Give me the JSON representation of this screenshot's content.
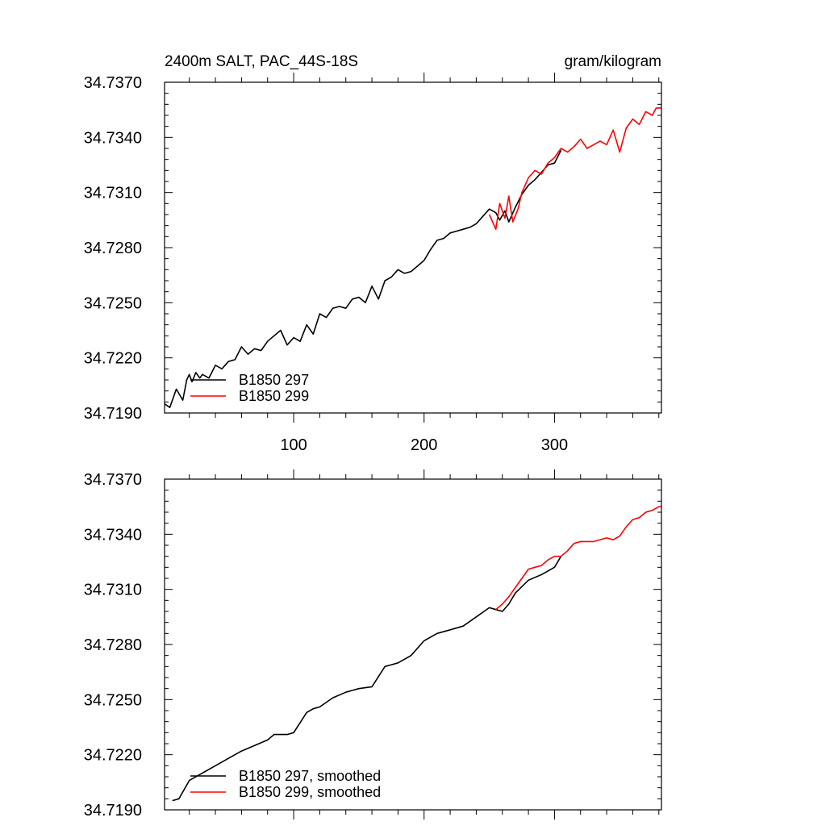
{
  "chart_data": [
    {
      "type": "line",
      "title": "2400m SALT, PAC_44S-18S",
      "units": "gram/kilogram",
      "xlabel": "",
      "ylabel": "",
      "xlim": [
        1,
        382
      ],
      "ylim": [
        34.719,
        34.737
      ],
      "xticks": [
        100,
        200,
        300
      ],
      "xtick_labels": [
        "100",
        "200",
        "300"
      ],
      "yticks": [
        34.719,
        34.722,
        34.725,
        34.728,
        34.731,
        34.734,
        34.737
      ],
      "ytick_labels": [
        "34.7190",
        "34.7220",
        "34.7250",
        "34.7280",
        "34.7310",
        "34.7340",
        "34.7370"
      ],
      "legend_position": "bottom-left",
      "series": [
        {
          "name": "B1850 297",
          "color": "#000000",
          "x": [
            1,
            5,
            10,
            15,
            18,
            20,
            22,
            25,
            28,
            30,
            35,
            40,
            45,
            50,
            55,
            60,
            65,
            70,
            75,
            80,
            85,
            90,
            95,
            100,
            105,
            110,
            115,
            120,
            125,
            130,
            135,
            140,
            145,
            150,
            155,
            160,
            165,
            170,
            175,
            180,
            185,
            190,
            195,
            200,
            205,
            210,
            215,
            220,
            225,
            230,
            235,
            240,
            245,
            250,
            255,
            258,
            262,
            265,
            270,
            275,
            280,
            285,
            290,
            295,
            300,
            305
          ],
          "y": [
            34.7195,
            34.7193,
            34.7203,
            34.7197,
            34.7208,
            34.7211,
            34.7207,
            34.7212,
            34.7209,
            34.7211,
            34.7209,
            34.7216,
            34.7214,
            34.7218,
            34.7219,
            34.7226,
            34.7222,
            34.7225,
            34.7224,
            34.7229,
            34.7232,
            34.7235,
            34.7227,
            34.7231,
            34.7229,
            34.7238,
            34.7233,
            34.7244,
            34.7242,
            34.7247,
            34.7248,
            34.7247,
            34.7252,
            34.7253,
            34.725,
            34.7259,
            34.7252,
            34.7262,
            34.7264,
            34.7268,
            34.7266,
            34.7267,
            34.727,
            34.7273,
            34.7279,
            34.7284,
            34.7285,
            34.7288,
            34.7289,
            34.729,
            34.7291,
            34.7293,
            34.7297,
            34.7301,
            34.7299,
            34.7295,
            34.73,
            34.7294,
            34.7302,
            34.7309,
            34.7314,
            34.7317,
            34.7321,
            34.7325,
            34.7326,
            34.7333
          ]
        },
        {
          "name": "B1850 299",
          "color": "#ff0000",
          "x": [
            250,
            255,
            258,
            262,
            265,
            268,
            272,
            275,
            280,
            285,
            290,
            295,
            300,
            305,
            310,
            315,
            320,
            325,
            330,
            335,
            340,
            345,
            350,
            355,
            360,
            365,
            370,
            375,
            378,
            382
          ],
          "y": [
            34.7298,
            34.729,
            34.7304,
            34.7296,
            34.7308,
            34.7294,
            34.7301,
            34.731,
            34.7318,
            34.7322,
            34.732,
            34.7326,
            34.7329,
            34.7334,
            34.7332,
            34.7335,
            34.7339,
            34.7334,
            34.7336,
            34.7338,
            34.7336,
            34.7344,
            34.7332,
            34.7345,
            34.735,
            34.7347,
            34.7354,
            34.7352,
            34.7356,
            34.7356
          ]
        }
      ]
    },
    {
      "type": "line",
      "title": "",
      "xlabel": "",
      "ylabel": "",
      "xlim": [
        1,
        382
      ],
      "ylim": [
        34.719,
        34.737
      ],
      "xticks": [
        100,
        200,
        300
      ],
      "xtick_labels": [],
      "yticks": [
        34.719,
        34.722,
        34.725,
        34.728,
        34.731,
        34.734,
        34.737
      ],
      "ytick_labels": [
        "34.7190",
        "34.7220",
        "34.7250",
        "34.7280",
        "34.7310",
        "34.7340",
        "34.7370"
      ],
      "legend_position": "bottom-left",
      "series": [
        {
          "name": "B1850 297, smoothed",
          "color": "#000000",
          "x": [
            7,
            12,
            20,
            30,
            40,
            50,
            60,
            70,
            80,
            85,
            90,
            95,
            100,
            110,
            115,
            120,
            130,
            140,
            145,
            150,
            160,
            170,
            175,
            180,
            190,
            200,
            210,
            220,
            230,
            240,
            250,
            255,
            260,
            265,
            270,
            280,
            290,
            300,
            305
          ],
          "y": [
            34.7195,
            34.7196,
            34.7206,
            34.721,
            34.7214,
            34.7218,
            34.7222,
            34.7225,
            34.7228,
            34.7231,
            34.7231,
            34.7231,
            34.7232,
            34.7243,
            34.7245,
            34.7246,
            34.7251,
            34.7254,
            34.7255,
            34.7256,
            34.7257,
            34.7268,
            34.7269,
            34.727,
            34.7274,
            34.7282,
            34.7286,
            34.7288,
            34.729,
            34.7295,
            34.73,
            34.7299,
            34.7298,
            34.7302,
            34.7308,
            34.7315,
            34.7318,
            34.7322,
            34.7328
          ]
        },
        {
          "name": "B1850 299, smoothed",
          "color": "#ff0000",
          "x": [
            255,
            260,
            265,
            270,
            275,
            280,
            285,
            290,
            295,
            300,
            305,
            310,
            315,
            320,
            330,
            340,
            345,
            350,
            355,
            360,
            365,
            370,
            375,
            380,
            382
          ],
          "y": [
            34.7299,
            34.7302,
            34.7306,
            34.7311,
            34.7316,
            34.7321,
            34.7322,
            34.7323,
            34.7326,
            34.7328,
            34.7328,
            34.7331,
            34.7335,
            34.7336,
            34.7336,
            34.7338,
            34.7337,
            34.7339,
            34.7344,
            34.7348,
            34.7349,
            34.7352,
            34.7353,
            34.7355,
            34.7355
          ]
        }
      ]
    }
  ]
}
